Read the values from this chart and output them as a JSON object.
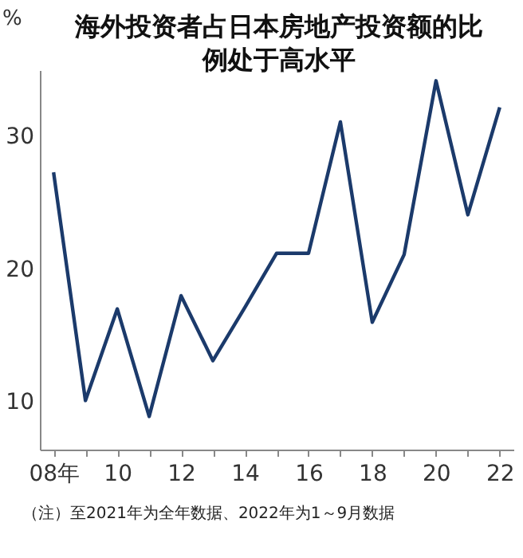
{
  "chart_data": {
    "type": "line",
    "title": "海外投资者占日本房地产投资额的比例处于高水平",
    "ylabel": "%",
    "categories": [
      "08年",
      null,
      "10",
      null,
      "12",
      null,
      "14",
      null,
      "16",
      null,
      "18",
      null,
      "20",
      null,
      "22"
    ],
    "series": [
      {
        "color": "#1b3a6b",
        "values": [
          27.3,
          10.1,
          17.0,
          8.9,
          18.0,
          13.1,
          17.1,
          21.2,
          21.2,
          31.1,
          16.0,
          21.1,
          34.2,
          24.1,
          32.2
        ]
      }
    ],
    "ylim": [
      6.4,
      35
    ],
    "yticks": [
      10,
      20,
      30
    ],
    "annotations": [
      "（注）至2021年为全年数据、2022年为1～9月数据"
    ],
    "grid": false,
    "marker": "none",
    "line_style": "solid"
  }
}
